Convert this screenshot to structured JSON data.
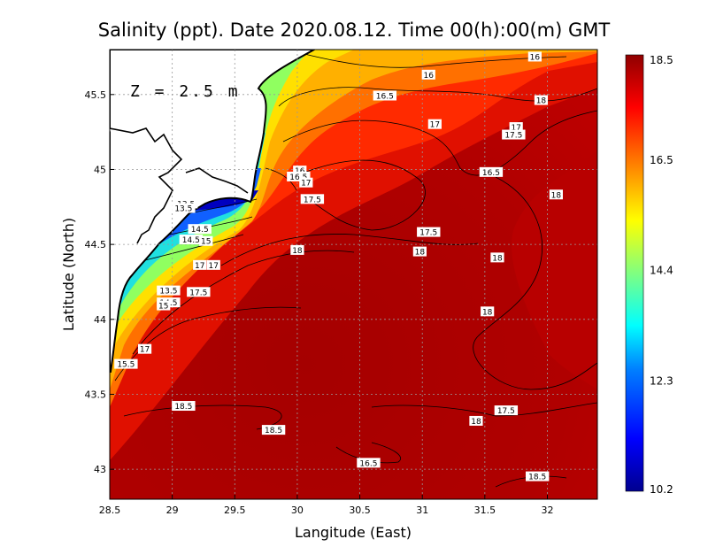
{
  "chart_data": {
    "type": "heatmap",
    "title": "Salinity (ppt). Date 2020.08.12. Time 00(h):00(m) GMT",
    "xlabel": "Langitude (East)",
    "ylabel": "Latitude (North)",
    "annotation": "Z = 2.5 m",
    "xlim": [
      28.5,
      32.4
    ],
    "ylim": [
      42.8,
      45.8
    ],
    "x_ticks": [
      "28.5",
      "29",
      "29.5",
      "30",
      "30.5",
      "31",
      "31.5",
      "32"
    ],
    "x_tick_values": [
      28.5,
      29,
      29.5,
      30,
      30.5,
      31,
      31.5,
      32
    ],
    "y_ticks": [
      "43",
      "43.5",
      "44",
      "44.5",
      "45",
      "45.5"
    ],
    "y_tick_values": [
      43,
      43.5,
      44,
      44.5,
      45,
      45.5
    ],
    "grid": true,
    "colorbar": {
      "min": 10.2,
      "max": 18.5,
      "ticks": [
        "18.5",
        "16.5",
        "14.4",
        "12.3",
        "10.2"
      ],
      "tick_values": [
        18.5,
        16.5,
        14.4,
        12.3,
        10.2
      ],
      "colors": [
        "#00008f",
        "#0000ff",
        "#0080ff",
        "#00ffff",
        "#80ff80",
        "#ffff00",
        "#ff8000",
        "#ff0000",
        "#8f0000"
      ]
    },
    "contour_labels": [
      {
        "label": "16",
        "lon": 31.05,
        "lat": 45.63
      },
      {
        "label": "16",
        "lon": 31.9,
        "lat": 45.75
      },
      {
        "label": "16.5",
        "lon": 30.7,
        "lat": 45.49
      },
      {
        "label": "17",
        "lon": 31.1,
        "lat": 45.3
      },
      {
        "label": "17",
        "lon": 31.75,
        "lat": 45.28
      },
      {
        "label": "17.5",
        "lon": 31.73,
        "lat": 45.23
      },
      {
        "label": "18",
        "lon": 31.95,
        "lat": 45.46
      },
      {
        "label": "16.5",
        "lon": 31.55,
        "lat": 44.98
      },
      {
        "label": "18",
        "lon": 32.07,
        "lat": 44.83
      },
      {
        "label": "16",
        "lon": 30.02,
        "lat": 44.99
      },
      {
        "label": "16.5",
        "lon": 30.01,
        "lat": 44.95
      },
      {
        "label": "17",
        "lon": 30.07,
        "lat": 44.91
      },
      {
        "label": "17.5",
        "lon": 30.12,
        "lat": 44.8
      },
      {
        "label": "13.5",
        "lon": 29.11,
        "lat": 44.77
      },
      {
        "label": "13.5",
        "lon": 29.09,
        "lat": 44.74
      },
      {
        "label": "14.5",
        "lon": 29.22,
        "lat": 44.6
      },
      {
        "label": "14.5",
        "lon": 29.15,
        "lat": 44.53
      },
      {
        "label": "15",
        "lon": 29.27,
        "lat": 44.52
      },
      {
        "label": "17.5",
        "lon": 31.05,
        "lat": 44.58
      },
      {
        "label": "18",
        "lon": 30.0,
        "lat": 44.46
      },
      {
        "label": "18",
        "lon": 30.98,
        "lat": 44.45
      },
      {
        "label": "18",
        "lon": 31.6,
        "lat": 44.41
      },
      {
        "label": "17",
        "lon": 29.22,
        "lat": 44.36
      },
      {
        "label": "17",
        "lon": 29.33,
        "lat": 44.36
      },
      {
        "label": "13.5",
        "lon": 28.97,
        "lat": 44.19
      },
      {
        "label": "17.5",
        "lon": 29.21,
        "lat": 44.18
      },
      {
        "label": "14.5",
        "lon": 28.97,
        "lat": 44.11
      },
      {
        "label": "15",
        "lon": 28.93,
        "lat": 44.09
      },
      {
        "label": "18",
        "lon": 31.52,
        "lat": 44.05
      },
      {
        "label": "17",
        "lon": 28.78,
        "lat": 43.8
      },
      {
        "label": "15.5",
        "lon": 28.63,
        "lat": 43.7
      },
      {
        "label": "18.5",
        "lon": 29.09,
        "lat": 43.42
      },
      {
        "label": "17.5",
        "lon": 31.67,
        "lat": 43.39
      },
      {
        "label": "18",
        "lon": 31.43,
        "lat": 43.32
      },
      {
        "label": "18.5",
        "lon": 29.81,
        "lat": 43.26
      },
      {
        "label": "16.5",
        "lon": 30.57,
        "lat": 43.04
      },
      {
        "label": "18.5",
        "lon": 31.92,
        "lat": 42.95
      }
    ]
  }
}
